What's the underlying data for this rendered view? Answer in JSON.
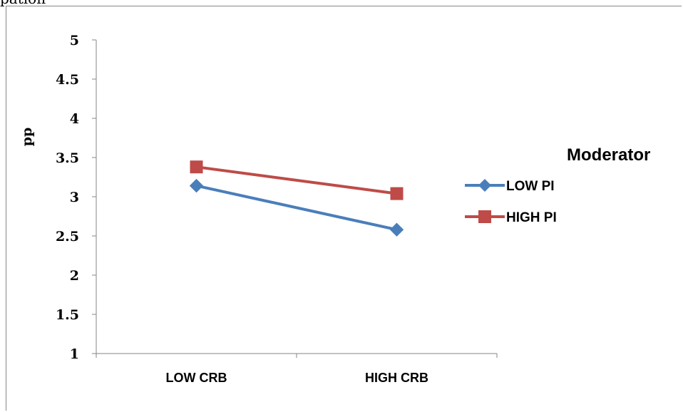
{
  "caption": "pation",
  "chart_data": {
    "type": "line",
    "categories": [
      "LOW CRB",
      "HIGH CRB"
    ],
    "series": [
      {
        "name": "LOW PI",
        "values": [
          3.14,
          2.58
        ],
        "color": "#4a7ebb",
        "marker": "diamond"
      },
      {
        "name": "HIGH PI",
        "values": [
          3.38,
          3.04
        ],
        "color": "#be4b48",
        "marker": "square"
      }
    ],
    "ylabel": "pp",
    "ylim": [
      1,
      5
    ],
    "yticks": [
      "1",
      "1.5",
      "2",
      "2.5",
      "3",
      "3.5",
      "4",
      "4.5",
      "5"
    ],
    "legend": {
      "title": "Moderator",
      "position": "right"
    },
    "grid": false
  }
}
